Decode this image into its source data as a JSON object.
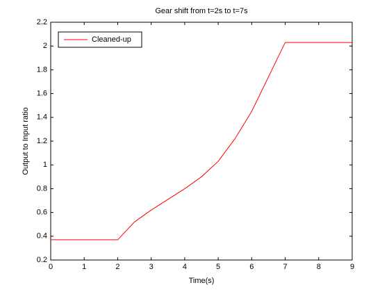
{
  "chart_data": {
    "type": "line",
    "title": "Gear shift from t=2s to t=7s",
    "x_label": "Time(s)",
    "y_label": "Output to Input ratio",
    "x": [
      0,
      2,
      2.5,
      3,
      3.5,
      4,
      4.5,
      5,
      5.5,
      6,
      6.5,
      7,
      9
    ],
    "series": [
      {
        "name": "Cleaned-up",
        "color": "#ff0000",
        "values": [
          0.37,
          0.37,
          0.52,
          0.62,
          0.71,
          0.8,
          0.9,
          1.03,
          1.22,
          1.45,
          1.74,
          2.03,
          2.03
        ]
      }
    ],
    "xlim": [
      0,
      9
    ],
    "xticks": [
      0,
      1,
      2,
      3,
      4,
      5,
      6,
      7,
      8,
      9
    ],
    "ylim": [
      0.2,
      2.2
    ],
    "yticks": [
      0.2,
      0.4,
      0.6,
      0.8,
      1,
      1.2,
      1.4,
      1.6,
      1.8,
      2,
      2.2
    ],
    "legend": "upper-left",
    "grid": false
  }
}
